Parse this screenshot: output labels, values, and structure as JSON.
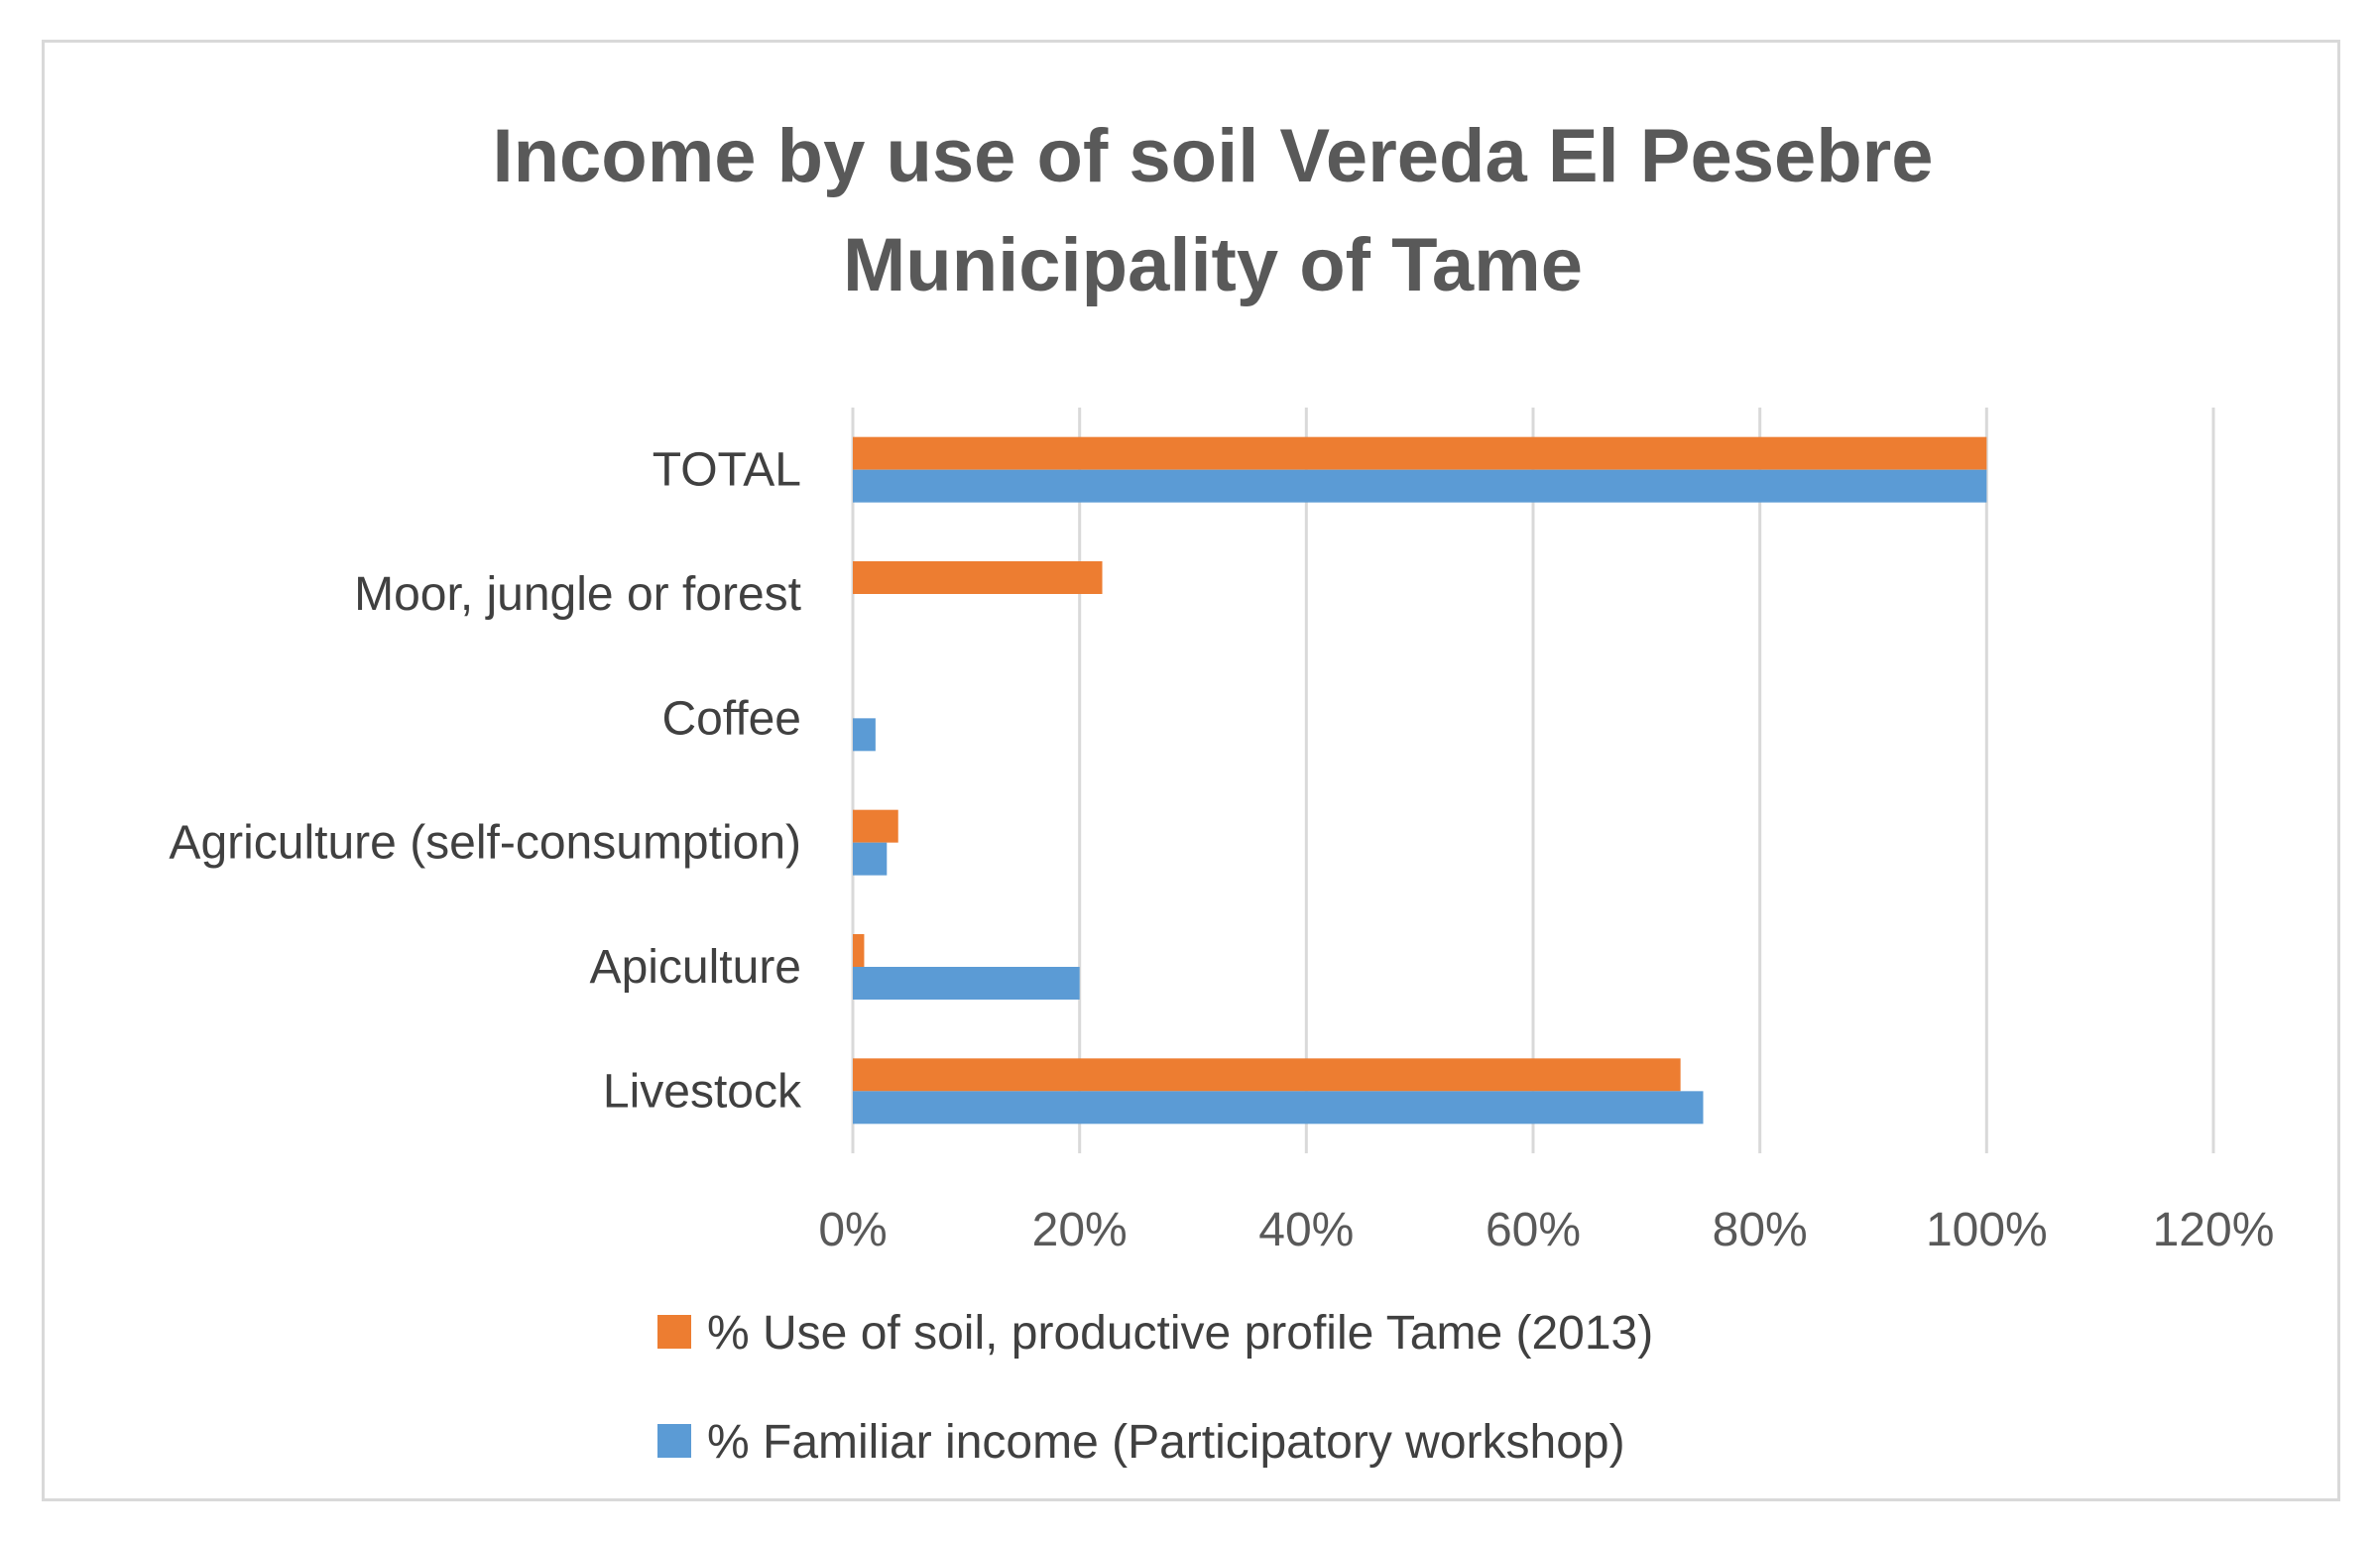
{
  "chart_data": {
    "type": "bar",
    "orientation": "horizontal",
    "title": "Income by use of soil Vereda El Pesebre Municipality of Tame",
    "title_lines": [
      "Income by use of soil Vereda El Pesebre",
      "Municipality of Tame"
    ],
    "categories": [
      "TOTAL",
      "Moor, jungle or forest",
      "Coffee",
      "Agriculture (self-consumption)",
      "Apiculture",
      "Livestock"
    ],
    "series": [
      {
        "name": "% Use of soil, productive profile Tame (2013)",
        "color": "#ED7D31",
        "values": [
          100,
          22,
          0,
          4,
          1,
          73
        ]
      },
      {
        "name": "% Familiar income (Participatory workshop)",
        "color": "#5B9BD5",
        "values": [
          100,
          0,
          2,
          3,
          20,
          75
        ]
      }
    ],
    "x_ticks": [
      "0%",
      "20%",
      "40%",
      "60%",
      "80%",
      "100%",
      "120%"
    ],
    "xlim": [
      0,
      120
    ],
    "grid": true,
    "legend_position": "bottom",
    "gridline_color": "#d9d9d9"
  }
}
